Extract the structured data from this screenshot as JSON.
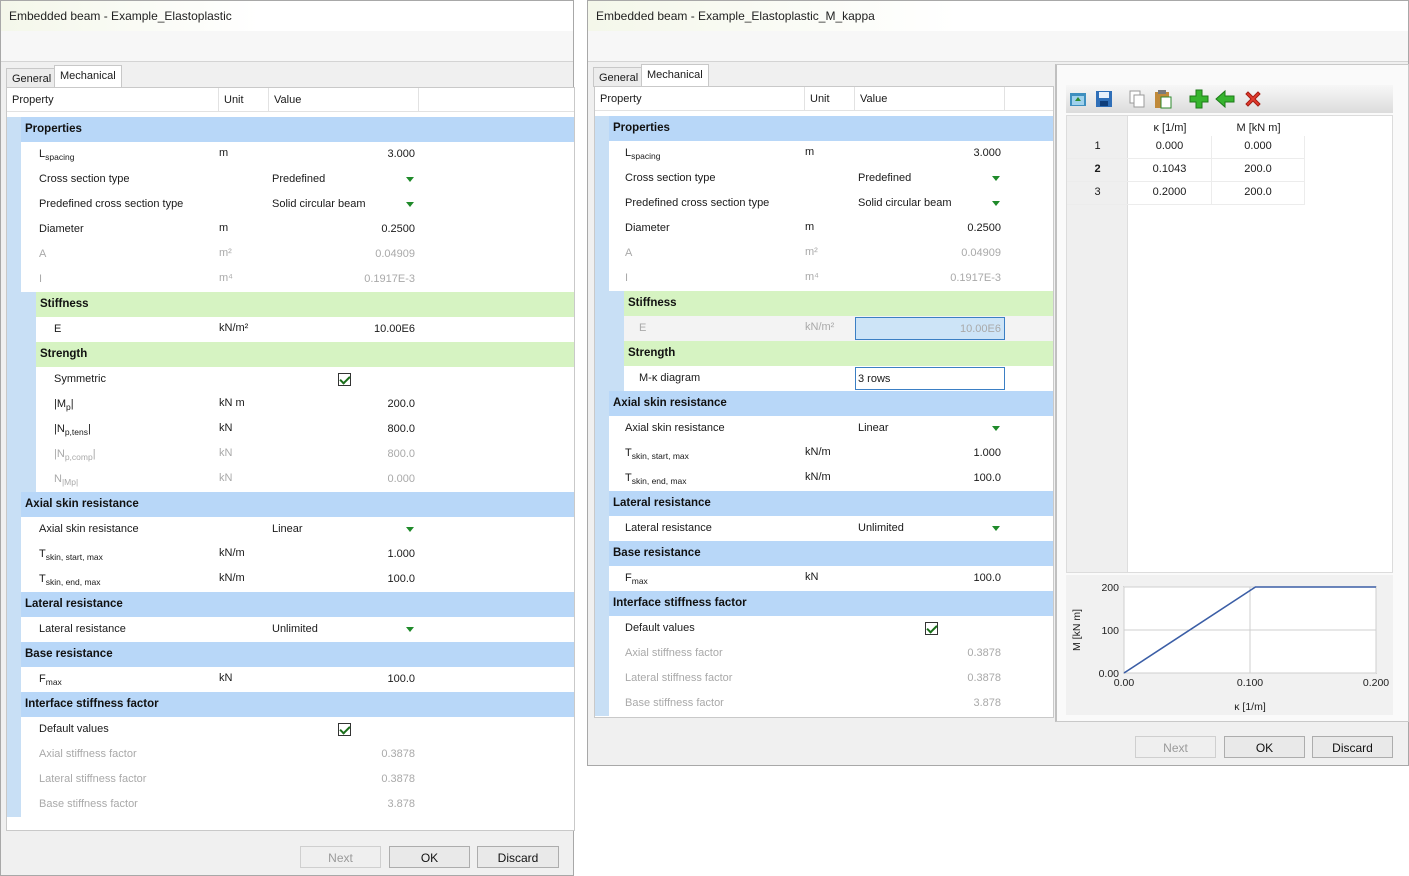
{
  "window1": {
    "title": "Embedded beam - Example_Elastoplastic",
    "tabs": [
      "General",
      "Mechanical"
    ],
    "columns": {
      "property": "Property",
      "unit": "Unit",
      "value": "Value"
    },
    "buttons": {
      "next": "Next",
      "ok": "OK",
      "discard": "Discard"
    },
    "sections": {
      "properties": "Properties",
      "stiffness": "Stiffness",
      "strength": "Strength",
      "axial": "Axial skin resistance",
      "lateral": "Lateral resistance",
      "base": "Base resistance",
      "interface": "Interface stiffness factor"
    },
    "rows": {
      "lspacing": {
        "main": "L",
        "sub": "spacing",
        "unit": "m",
        "value": "3.000"
      },
      "cross_section": {
        "label": "Cross section type",
        "value": "Predefined"
      },
      "predefined": {
        "label": "Predefined cross section type",
        "value": "Solid circular beam"
      },
      "diameter": {
        "label": "Diameter",
        "unit": "m",
        "value": "0.2500"
      },
      "area": {
        "label": "A",
        "unit": "m²",
        "value": "0.04909"
      },
      "inertia": {
        "label": "I",
        "unit": "m⁴",
        "value": "0.1917E-3"
      },
      "e": {
        "label": "E",
        "unit": "kN/m²",
        "value": "10.00E6"
      },
      "symmetric": {
        "label": "Symmetric",
        "checked": true
      },
      "mp": {
        "pre": "|M",
        "sub": "p",
        "post": "|",
        "unit": "kN m",
        "value": "200.0"
      },
      "nptens": {
        "pre": "|N",
        "sub": "p,tens",
        "post": "|",
        "unit": "kN",
        "value": "800.0"
      },
      "npcomp": {
        "pre": "|N",
        "sub": "p,comp",
        "post": "|",
        "unit": "kN",
        "value": "800.0"
      },
      "nmp": {
        "pre": "N",
        "sub": "|Mp|",
        "post": "",
        "unit": "kN",
        "value": "0.000"
      },
      "axial_type": {
        "label": "Axial skin resistance",
        "value": "Linear"
      },
      "tstart": {
        "main": "T",
        "sub": "skin, start, max",
        "unit": "kN/m",
        "value": "1.000"
      },
      "tend": {
        "main": "T",
        "sub": "skin, end, max",
        "unit": "kN/m",
        "value": "100.0"
      },
      "lateral_type": {
        "label": "Lateral resistance",
        "value": "Unlimited"
      },
      "fmax": {
        "main": "F",
        "sub": "max",
        "unit": "kN",
        "value": "100.0"
      },
      "default_values": {
        "label": "Default values",
        "checked": true
      },
      "axial_factor": {
        "label": "Axial stiffness factor",
        "value": "0.3878"
      },
      "lateral_factor": {
        "label": "Lateral stiffness factor",
        "value": "0.3878"
      },
      "base_factor": {
        "label": "Base stiffness factor",
        "value": "3.878"
      }
    }
  },
  "window2": {
    "title": "Embedded beam - Example_Elastoplastic_M_kappa",
    "tabs": [
      "General",
      "Mechanical"
    ],
    "columns": {
      "property": "Property",
      "unit": "Unit",
      "value": "Value"
    },
    "buttons": {
      "next": "Next",
      "ok": "OK",
      "discard": "Discard"
    },
    "sections": {
      "properties": "Properties",
      "stiffness": "Stiffness",
      "strength": "Strength",
      "axial": "Axial skin resistance",
      "lateral": "Lateral resistance",
      "base": "Base resistance",
      "interface": "Interface stiffness factor"
    },
    "rows": {
      "lspacing": {
        "main": "L",
        "sub": "spacing",
        "unit": "m",
        "value": "3.000"
      },
      "cross_section": {
        "label": "Cross section type",
        "value": "Predefined"
      },
      "predefined": {
        "label": "Predefined cross section type",
        "value": "Solid circular beam"
      },
      "diameter": {
        "label": "Diameter",
        "unit": "m",
        "value": "0.2500"
      },
      "area": {
        "label": "A",
        "unit": "m²",
        "value": "0.04909"
      },
      "inertia": {
        "label": "I",
        "unit": "m⁴",
        "value": "0.1917E-3"
      },
      "e": {
        "label": "E",
        "unit": "kN/m²",
        "value": "10.00E6"
      },
      "mk": {
        "label": "M-κ diagram",
        "value": "3 rows"
      },
      "axial_type": {
        "label": "Axial skin resistance",
        "value": "Linear"
      },
      "tstart": {
        "main": "T",
        "sub": "skin, start, max",
        "unit": "kN/m",
        "value": "1.000"
      },
      "tend": {
        "main": "T",
        "sub": "skin, end, max",
        "unit": "kN/m",
        "value": "100.0"
      },
      "lateral_type": {
        "label": "Lateral resistance",
        "value": "Unlimited"
      },
      "fmax": {
        "main": "F",
        "sub": "max",
        "unit": "kN",
        "value": "100.0"
      },
      "default_values": {
        "label": "Default values",
        "checked": true
      },
      "axial_factor": {
        "label": "Axial stiffness factor",
        "value": "0.3878"
      },
      "lateral_factor": {
        "label": "Lateral stiffness factor",
        "value": "0.3878"
      },
      "base_factor": {
        "label": "Base stiffness factor",
        "value": "3.878"
      }
    },
    "mk_table": {
      "headers": [
        "κ [1/m]",
        "M [kN m]"
      ],
      "rows": [
        {
          "index": "1",
          "kappa": "0.000",
          "m": "0.000"
        },
        {
          "index": "2",
          "kappa": "0.1043",
          "m": "200.0"
        },
        {
          "index": "3",
          "kappa": "0.2000",
          "m": "200.0"
        }
      ]
    },
    "toolbar_icons": [
      "open-icon",
      "save-icon",
      "copy-icon",
      "paste-icon",
      "add-row-icon",
      "insert-row-icon",
      "delete-row-icon"
    ]
  },
  "chart_data": {
    "type": "line",
    "x": [
      0.0,
      0.1043,
      0.2
    ],
    "series": [
      {
        "values": [
          0.0,
          200.0,
          200.0
        ]
      }
    ],
    "xlabel": "κ [1/m]",
    "ylabel": "M [kN m]",
    "xlim": [
      0,
      0.2
    ],
    "ylim": [
      0,
      200
    ],
    "xticks": [
      "0.00",
      "0.100",
      "0.200"
    ],
    "yticks": [
      "0.00",
      "100",
      "200"
    ],
    "grid": true,
    "colors": {
      "line": "#3b5ea6"
    }
  }
}
